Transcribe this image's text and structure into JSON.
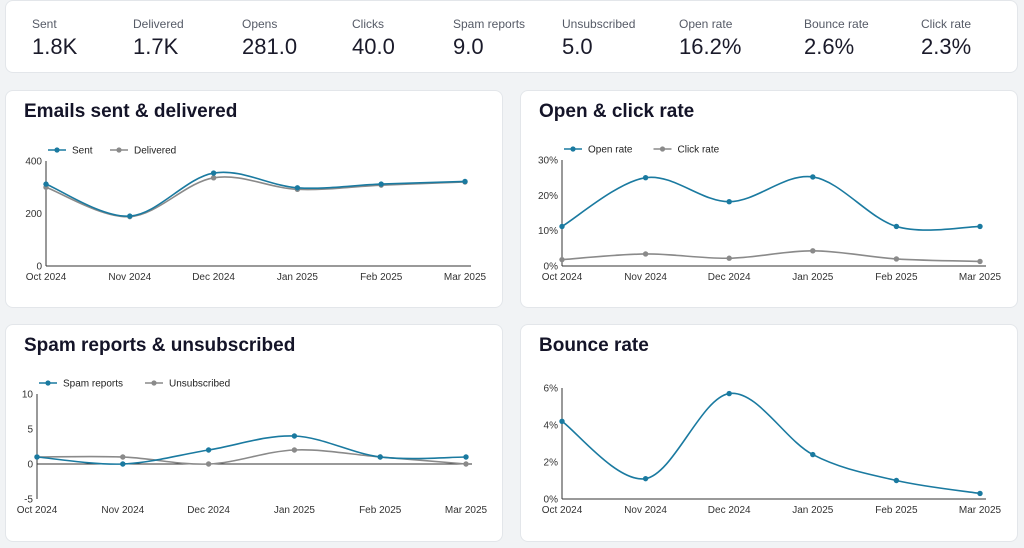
{
  "kpis": [
    {
      "label": "Sent",
      "value": "1.8K"
    },
    {
      "label": "Delivered",
      "value": "1.7K"
    },
    {
      "label": "Opens",
      "value": "281.0"
    },
    {
      "label": "Clicks",
      "value": "40.0"
    },
    {
      "label": "Spam reports",
      "value": "9.0"
    },
    {
      "label": "Unsubscribed",
      "value": "5.0"
    },
    {
      "label": "Open rate",
      "value": "16.2%"
    },
    {
      "label": "Bounce rate",
      "value": "2.6%"
    },
    {
      "label": "Click rate",
      "value": "2.3%"
    }
  ],
  "colors": {
    "primary": "#1a7aa0",
    "secondary": "#8a8a8a",
    "axis": "#333333"
  },
  "chart_data": [
    {
      "type": "line",
      "title": "Emails sent & delivered",
      "categories": [
        "Oct 2024",
        "Nov 2024",
        "Dec 2024",
        "Jan 2025",
        "Feb 2025",
        "Mar 2025"
      ],
      "series": [
        {
          "name": "Sent",
          "values": [
            312,
            190,
            354,
            298,
            312,
            322
          ]
        },
        {
          "name": "Delivered",
          "values": [
            300,
            188,
            336,
            292,
            308,
            320
          ]
        }
      ],
      "ylim": [
        0,
        400
      ],
      "yticks": [
        0,
        200,
        400
      ],
      "yticklabels": [
        "0",
        "200",
        "400"
      ],
      "legend": "top-left"
    },
    {
      "type": "line",
      "title": "Open & click rate",
      "categories": [
        "Oct 2024",
        "Nov 2024",
        "Dec 2024",
        "Jan 2025",
        "Feb 2025",
        "Mar 2025"
      ],
      "series": [
        {
          "name": "Open rate",
          "values": [
            11.2,
            25.0,
            18.2,
            25.2,
            11.2,
            11.2
          ]
        },
        {
          "name": "Click rate",
          "values": [
            1.8,
            3.4,
            2.2,
            4.3,
            2.0,
            1.3
          ]
        }
      ],
      "ylim": [
        0,
        30
      ],
      "yticks": [
        0,
        10,
        20,
        30
      ],
      "yticklabels": [
        "0%",
        "10%",
        "20%",
        "30%"
      ],
      "legend": "top-left"
    },
    {
      "type": "line",
      "title": "Spam reports & unsubscribed",
      "categories": [
        "Oct 2024",
        "Nov 2024",
        "Dec 2024",
        "Jan 2025",
        "Feb 2025",
        "Mar 2025"
      ],
      "series": [
        {
          "name": "Spam reports",
          "values": [
            1,
            0,
            2,
            4,
            1,
            1
          ]
        },
        {
          "name": "Unsubscribed",
          "values": [
            1,
            1,
            0,
            2,
            1,
            0
          ]
        }
      ],
      "ylim": [
        -5,
        10
      ],
      "yticks": [
        -5,
        0,
        5,
        10
      ],
      "yticklabels": [
        "-5",
        "0",
        "5",
        "10"
      ],
      "legend": "top-left"
    },
    {
      "type": "line",
      "title": "Bounce rate",
      "categories": [
        "Oct 2024",
        "Nov 2024",
        "Dec 2024",
        "Jan 2025",
        "Feb 2025",
        "Mar 2025"
      ],
      "series": [
        {
          "name": "Bounce rate",
          "values": [
            4.2,
            1.1,
            5.7,
            2.4,
            1.0,
            0.3
          ]
        }
      ],
      "ylim": [
        0,
        6
      ],
      "yticks": [
        0,
        2,
        4,
        6
      ],
      "yticklabels": [
        "0%",
        "2%",
        "4%",
        "6%"
      ],
      "legend": "none"
    }
  ]
}
